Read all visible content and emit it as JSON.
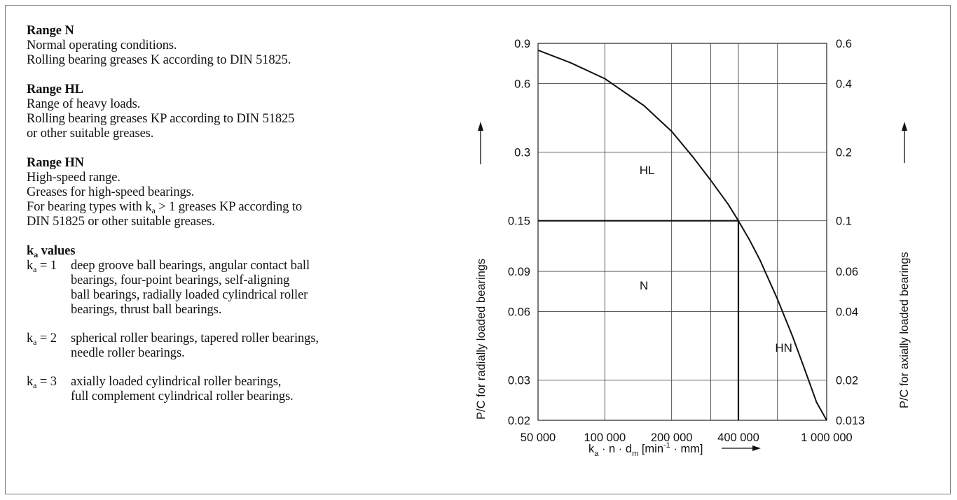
{
  "description": {
    "range_n": {
      "title": "Range N",
      "lines": [
        "Normal operating conditions.",
        "Rolling bearing greases K according to DIN 51825."
      ]
    },
    "range_hl": {
      "title": "Range HL",
      "lines": [
        "Range of heavy loads.",
        "Rolling bearing greases KP according to DIN 51825",
        "or other suitable greases."
      ]
    },
    "range_hn": {
      "title": "Range HN",
      "lines": [
        "High-speed range.",
        "Greases for high-speed bearings."
      ],
      "ka_line_pre": "For bearing types with k",
      "ka_line_sub": "a",
      "ka_line_post": " > 1 greases KP according to",
      "last_line": "DIN 51825 or other suitable greases."
    },
    "ka_values": {
      "title_k": "k",
      "title_sub": "a",
      "title_rest": " values",
      "items": [
        {
          "eq_k": "k",
          "eq_sub": "a",
          "eq_rest": " = 1",
          "lines": [
            "deep groove ball bearings, angular contact ball",
            "bearings, four-point bearings, self-aligning",
            "ball bearings, radially loaded cylindrical roller",
            "bearings, thrust ball bearings."
          ]
        },
        {
          "eq_k": "k",
          "eq_sub": "a",
          "eq_rest": " = 2",
          "lines": [
            "spherical roller bearings, tapered roller bearings,",
            "needle roller bearings."
          ]
        },
        {
          "eq_k": "k",
          "eq_sub": "a",
          "eq_rest": " = 3",
          "lines": [
            "axially loaded cylindrical roller bearings,",
            "full complement cylindrical roller bearings."
          ]
        }
      ]
    }
  },
  "chart_data": {
    "type": "line",
    "x_scale": "log",
    "y_scale": "log",
    "xlim": [
      50000,
      1000000
    ],
    "ylim": [
      0.02,
      0.9
    ],
    "x_ticks": [
      50000,
      100000,
      200000,
      400000,
      1000000
    ],
    "x_tick_labels": [
      "50 000",
      "100 000",
      "200 000",
      "400 000",
      "1 000 000"
    ],
    "y_ticks": [
      0.02,
      0.03,
      0.06,
      0.09,
      0.15,
      0.3,
      0.6,
      0.9
    ],
    "y_tick_labels": [
      "0.02",
      "0.03",
      "0.06",
      "0.09",
      "0.15",
      "0.3",
      "0.6",
      "0.9"
    ],
    "y2_tick_labels": [
      "0.013",
      "0.02",
      "0.04",
      "0.06",
      "0.1",
      "0.2",
      "0.4",
      "0.6"
    ],
    "x_grid_extra": [
      300000,
      600000
    ],
    "xlabel": {
      "k": "k",
      "k_sub": "a",
      "mid": " · n · d",
      "d_sub": "m",
      "bracket_open": "  [min",
      "exp": "-1",
      "bracket_close": " · mm]"
    },
    "ylabel": "P/C  for radially loaded bearings",
    "y2label": "P/C  for axially loaded bearings",
    "grid": true,
    "curve": {
      "x": [
        50000,
        70000,
        100000,
        150000,
        200000,
        250000,
        300000,
        360000,
        400000,
        450000,
        500000,
        600000,
        700000,
        800000,
        900000,
        1000000
      ],
      "y": [
        0.84,
        0.74,
        0.63,
        0.48,
        0.37,
        0.285,
        0.226,
        0.177,
        0.15,
        0.123,
        0.101,
        0.068,
        0.047,
        0.033,
        0.024,
        0.02
      ]
    },
    "boundary_hl_n": {
      "x": [
        50000,
        400000
      ],
      "y": [
        0.15,
        0.15
      ]
    },
    "boundary_n_hn": {
      "x": [
        400000,
        400000
      ],
      "y": [
        0.15,
        0.02
      ]
    },
    "region_labels": [
      {
        "text": "HL",
        "x": 155000,
        "y": 0.24
      },
      {
        "text": "N",
        "x": 150000,
        "y": 0.075
      },
      {
        "text": "HN",
        "x": 640000,
        "y": 0.04
      }
    ]
  }
}
